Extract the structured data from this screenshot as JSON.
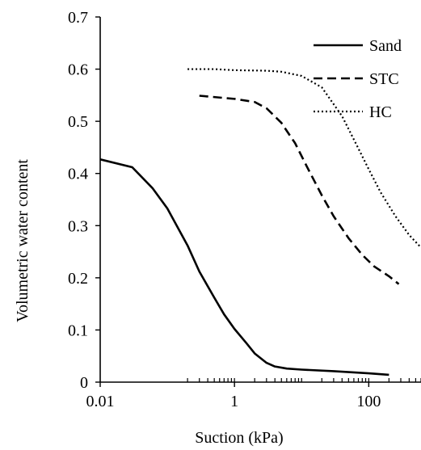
{
  "chart_data": {
    "type": "line",
    "xlabel": "Suction (kPa)",
    "ylabel": "Volumetric water content",
    "x_scale": "log",
    "xlim": [
      0.01,
      600
    ],
    "ylim": [
      0,
      0.7
    ],
    "x_ticks": [
      0.01,
      1,
      100
    ],
    "x_tick_labels": [
      "0.01",
      "1",
      "100"
    ],
    "y_ticks": [
      0,
      0.1,
      0.2,
      0.3,
      0.4,
      0.5,
      0.6,
      0.7
    ],
    "y_tick_labels": [
      "0",
      "0.1",
      "0.2",
      "0.3",
      "0.4",
      "0.5",
      "0.6",
      "0.7"
    ],
    "grid": false,
    "legend_position": "top-right",
    "series": [
      {
        "name": "Sand",
        "style": "solid",
        "color": "#000000",
        "x": [
          0.01,
          0.03,
          0.06,
          0.1,
          0.2,
          0.3,
          0.5,
          0.7,
          1,
          1.5,
          2,
          3,
          4,
          6,
          10,
          30,
          100,
          200
        ],
        "y": [
          0.427,
          0.412,
          0.372,
          0.333,
          0.262,
          0.212,
          0.162,
          0.13,
          0.102,
          0.075,
          0.055,
          0.037,
          0.03,
          0.026,
          0.024,
          0.021,
          0.017,
          0.014
        ]
      },
      {
        "name": "STC",
        "style": "dashed",
        "color": "#000000",
        "x": [
          0.3,
          1,
          2,
          3,
          5,
          8,
          12,
          20,
          30,
          50,
          80,
          120,
          200,
          280
        ],
        "y": [
          0.549,
          0.543,
          0.537,
          0.525,
          0.497,
          0.458,
          0.413,
          0.358,
          0.318,
          0.276,
          0.244,
          0.222,
          0.203,
          0.188
        ]
      },
      {
        "name": "HC",
        "style": "dotted",
        "color": "#000000",
        "x": [
          0.2,
          0.5,
          1,
          3,
          5,
          10,
          20,
          40,
          70,
          100,
          150,
          250,
          400,
          600
        ],
        "y": [
          0.6,
          0.6,
          0.598,
          0.597,
          0.595,
          0.587,
          0.565,
          0.51,
          0.448,
          0.408,
          0.364,
          0.318,
          0.282,
          0.258
        ]
      }
    ]
  }
}
